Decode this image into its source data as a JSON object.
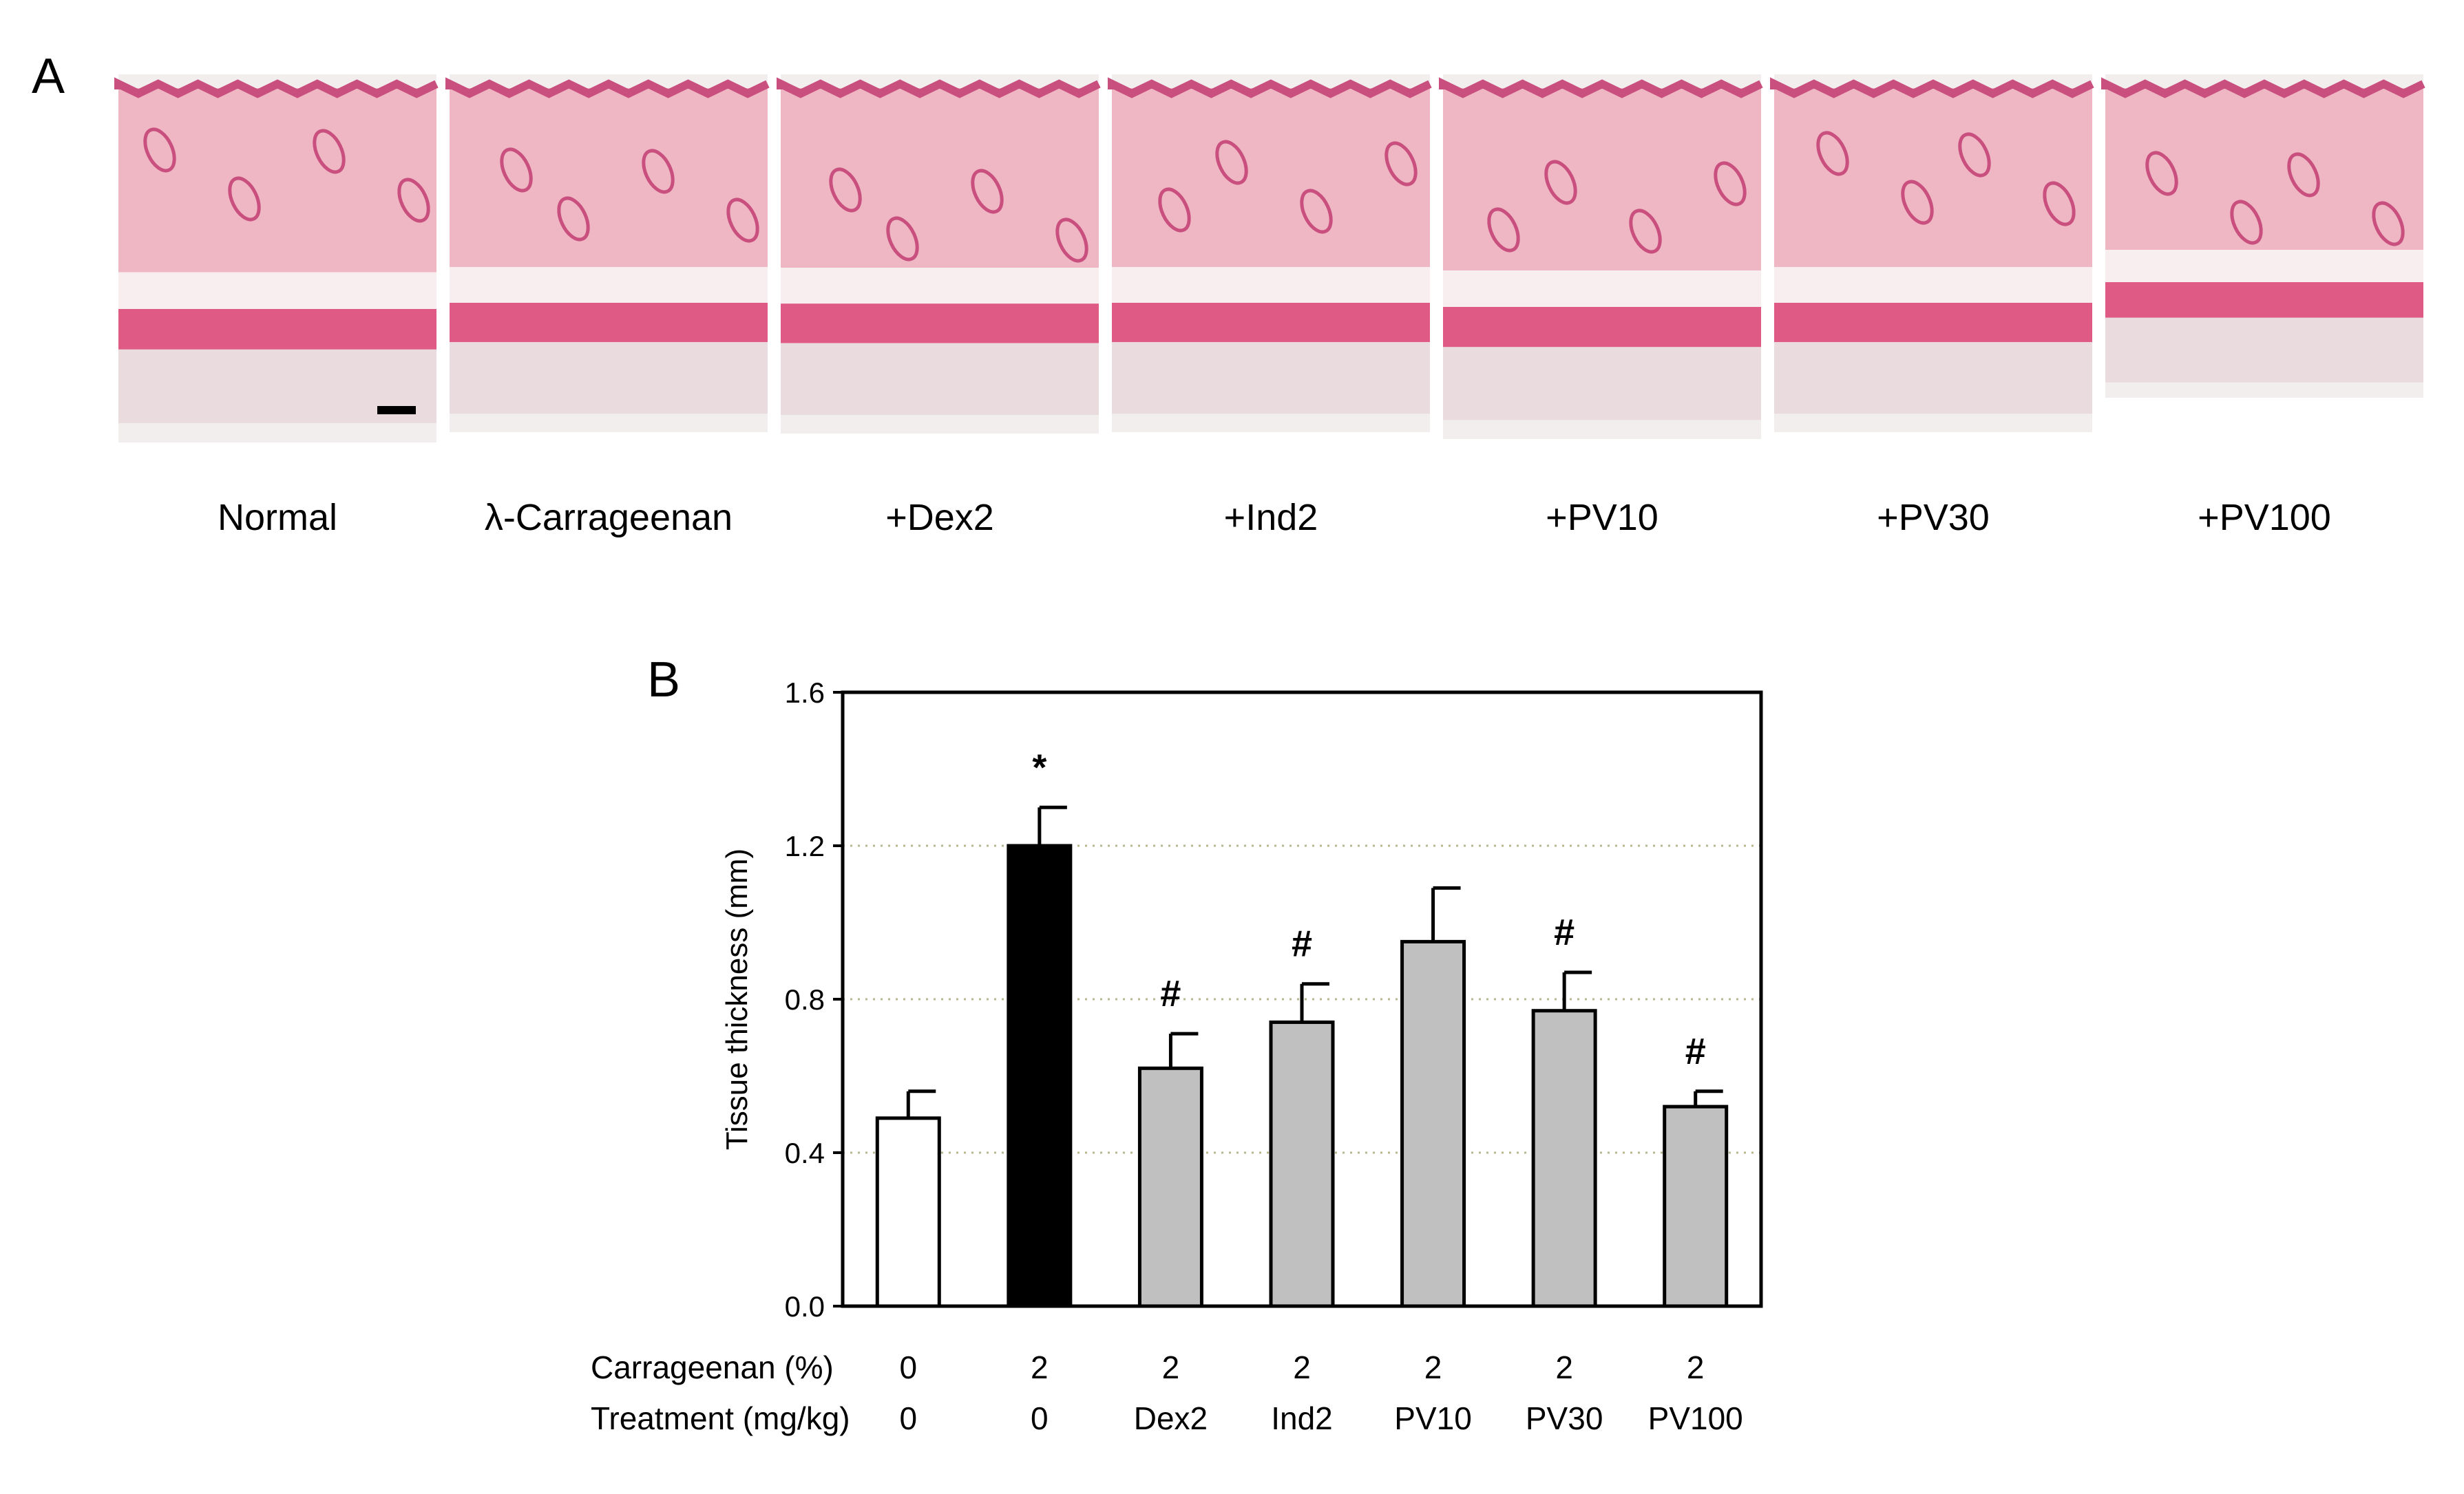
{
  "panel_a": {
    "letter": "A",
    "captions": [
      "Normal",
      "λ-Carrageenan",
      "+Dex2",
      "+Ind2",
      "+PV10",
      "+PV30",
      "+PV100"
    ],
    "tissue_colors": {
      "epidermis": "#c94f7e",
      "dermis": "#efb6c4",
      "fat": "#f8eef0",
      "muscle": "#df5a84",
      "subcutis": "#eadbdf",
      "background": "#f3eeee"
    }
  },
  "panel_b": {
    "letter": "B",
    "row_labels": {
      "carrageenan": "Carrageenan (%)",
      "treatment": "Treatment (mg/kg)"
    },
    "carrageenan": [
      "0",
      "2",
      "2",
      "2",
      "2",
      "2",
      "2"
    ],
    "treatment": [
      "0",
      "0",
      "Dex2",
      "Ind2",
      "PV10",
      "PV30",
      "PV100"
    ]
  },
  "chart_data": {
    "type": "bar",
    "title": "",
    "xlabel": "",
    "ylabel": "Tissue thickness (mm)",
    "ylim": [
      0,
      1.6
    ],
    "yticks": [
      0.0,
      0.4,
      0.8,
      1.2,
      1.6
    ],
    "ytick_labels": [
      "0.0",
      "0.4",
      "0.8",
      "1.2",
      "1.6"
    ],
    "grid": "horizontal dotted",
    "categories": [
      "0 / 0",
      "2 / 0",
      "2 / Dex2",
      "2 / Ind2",
      "2 / PV10",
      "2 / PV30",
      "2 / PV100"
    ],
    "values": [
      0.49,
      1.2,
      0.62,
      0.74,
      0.95,
      0.77,
      0.52
    ],
    "errors": [
      0.07,
      0.1,
      0.09,
      0.1,
      0.14,
      0.1,
      0.04
    ],
    "annotations": [
      "",
      "*",
      "#",
      "#",
      "",
      "#",
      "#"
    ],
    "bar_colors": [
      "#ffffff",
      "#000000",
      "#c0c0c0",
      "#c0c0c0",
      "#c0c0c0",
      "#c0c0c0",
      "#c0c0c0"
    ]
  }
}
